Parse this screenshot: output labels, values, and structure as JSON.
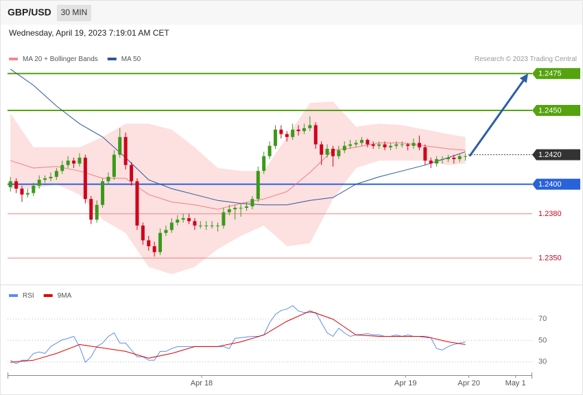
{
  "header": {
    "symbol": "GBP/USD",
    "timeframe": "30 MIN",
    "timestamp": "Wednesday, April 19, 2023 7:19:01 AM CET"
  },
  "chart_data": [
    {
      "type": "candlestick",
      "credit": "Research © 2023 Trading Central",
      "xlim": [
        -0.5,
        90.6
      ],
      "ylim": [
        1.2332,
        1.2483
      ],
      "up_color": "#3a9a1a",
      "down_color": "#d0021b",
      "candles": {
        "open": [
          1.2398,
          1.2402,
          1.2397,
          1.2393,
          1.2394,
          1.2399,
          1.2403,
          1.2404,
          1.2405,
          1.2409,
          1.2413,
          1.2416,
          1.2414,
          1.2418,
          1.239,
          1.2376,
          1.2386,
          1.2402,
          1.2405,
          1.242,
          1.2432,
          1.2413,
          1.2402,
          1.2372,
          1.2362,
          1.2358,
          1.2354,
          1.2367,
          1.2369,
          1.2374,
          1.2376,
          1.2377,
          1.2375,
          1.2372,
          1.2372,
          1.2372,
          1.2372,
          1.2372,
          1.2381,
          1.2383,
          1.2384,
          1.2384,
          1.2385,
          1.239,
          1.2409,
          1.2419,
          1.2426,
          1.2437,
          1.2434,
          1.2432,
          1.2437,
          1.2436,
          1.2438,
          1.244,
          1.2427,
          1.242,
          1.2424,
          1.2419,
          1.2423,
          1.2426,
          1.2427,
          1.2428,
          1.243,
          1.2427,
          1.2426,
          1.2427,
          1.2425,
          1.2426,
          1.2427,
          1.2427,
          1.2426,
          1.2428,
          1.2425,
          1.2416,
          1.2414,
          1.2417,
          1.2417,
          1.2418,
          1.2417,
          1.2419
        ],
        "high": [
          1.2405,
          1.2404,
          1.2399,
          1.2397,
          1.2401,
          1.2406,
          1.2406,
          1.2408,
          1.2411,
          1.2416,
          1.2419,
          1.2418,
          1.2421,
          1.242,
          1.2392,
          1.2389,
          1.2404,
          1.2408,
          1.2423,
          1.2438,
          1.2435,
          1.2415,
          1.2404,
          1.2374,
          1.2365,
          1.2361,
          1.237,
          1.2372,
          1.2377,
          1.2379,
          1.238,
          1.238,
          1.2377,
          1.2375,
          1.2375,
          1.2375,
          1.2374,
          1.2384,
          1.2386,
          1.2386,
          1.2387,
          1.2388,
          1.2392,
          1.2412,
          1.2422,
          1.2429,
          1.244,
          1.244,
          1.2436,
          1.2441,
          1.244,
          1.2441,
          1.2446,
          1.2442,
          1.2429,
          1.2427,
          1.2426,
          1.2426,
          1.2429,
          1.243,
          1.243,
          1.2432,
          1.2431,
          1.2429,
          1.2429,
          1.2429,
          1.2428,
          1.2429,
          1.2429,
          1.2428,
          1.2431,
          1.2433,
          1.2427,
          1.2418,
          1.2419,
          1.2419,
          1.242,
          1.242,
          1.2421,
          1.2421
        ],
        "low": [
          1.2395,
          1.2394,
          1.2388,
          1.2391,
          1.2392,
          1.2397,
          1.2401,
          1.2402,
          1.2403,
          1.2407,
          1.2411,
          1.2411,
          1.2412,
          1.2387,
          1.2373,
          1.2374,
          1.2384,
          1.24,
          1.2403,
          1.2418,
          1.241,
          1.2399,
          1.2369,
          1.2359,
          1.2355,
          1.2351,
          1.2352,
          1.2365,
          1.2367,
          1.2372,
          1.2374,
          1.2373,
          1.2369,
          1.237,
          1.2369,
          1.237,
          1.2368,
          1.237,
          1.2379,
          1.2376,
          1.2378,
          1.2382,
          1.2383,
          1.2388,
          1.2407,
          1.2417,
          1.2424,
          1.2431,
          1.2429,
          1.243,
          1.2433,
          1.2434,
          1.2436,
          1.2424,
          1.2413,
          1.2418,
          1.2412,
          1.2417,
          1.2421,
          1.2424,
          1.2425,
          1.2426,
          1.2425,
          1.2424,
          1.2424,
          1.2423,
          1.2423,
          1.2424,
          1.2425,
          1.2423,
          1.2424,
          1.2423,
          1.2413,
          1.2411,
          1.2412,
          1.2414,
          1.2415,
          1.2414,
          1.2415,
          1.2416
        ],
        "close": [
          1.2402,
          1.2397,
          1.2393,
          1.2394,
          1.2399,
          1.2403,
          1.2404,
          1.2405,
          1.2409,
          1.2413,
          1.2416,
          1.2414,
          1.2418,
          1.239,
          1.2376,
          1.2386,
          1.2402,
          1.2405,
          1.242,
          1.2432,
          1.2413,
          1.2402,
          1.2372,
          1.2362,
          1.2358,
          1.2354,
          1.2367,
          1.2369,
          1.2374,
          1.2376,
          1.2377,
          1.2375,
          1.2372,
          1.2372,
          1.2372,
          1.2372,
          1.2372,
          1.2381,
          1.2383,
          1.2384,
          1.2384,
          1.2385,
          1.239,
          1.2409,
          1.2419,
          1.2426,
          1.2437,
          1.2434,
          1.2432,
          1.2437,
          1.2436,
          1.2438,
          1.244,
          1.2427,
          1.242,
          1.2424,
          1.2419,
          1.2423,
          1.2426,
          1.2427,
          1.2428,
          1.243,
          1.2427,
          1.2426,
          1.2427,
          1.2425,
          1.2426,
          1.2427,
          1.2427,
          1.2426,
          1.2428,
          1.2425,
          1.2416,
          1.2414,
          1.2417,
          1.2417,
          1.2418,
          1.2417,
          1.2419,
          1.2419
        ]
      },
      "series": [
        {
          "name": "MA 20 + Bollinger Bands",
          "color": "#f08080",
          "band_color": "#fde0e0",
          "x": [
            0,
            4,
            8,
            12,
            16,
            20,
            24,
            28,
            32,
            36,
            40,
            44,
            48,
            52,
            56,
            60,
            64,
            68,
            72,
            76,
            79
          ],
          "values": [
            1.2416,
            1.2411,
            1.2412,
            1.2409,
            1.2404,
            1.2404,
            1.2393,
            1.2388,
            1.2386,
            1.2383,
            1.2387,
            1.239,
            1.2395,
            1.2408,
            1.2423,
            1.2425,
            1.2428,
            1.2428,
            1.2426,
            1.2424,
            1.2423
          ],
          "upper": [
            1.2448,
            1.2425,
            1.2425,
            1.2425,
            1.2432,
            1.2441,
            1.2441,
            1.2437,
            1.2425,
            1.2411,
            1.2409,
            1.2409,
            1.2432,
            1.2455,
            1.2456,
            1.2439,
            1.2441,
            1.244,
            1.2437,
            1.2434,
            1.2432
          ],
          "lower": [
            1.2397,
            1.2397,
            1.24,
            1.2393,
            1.2376,
            1.2367,
            1.2344,
            1.2339,
            1.2344,
            1.2356,
            1.2365,
            1.2372,
            1.2358,
            1.236,
            1.239,
            1.2411,
            1.2416,
            1.2416,
            1.2416,
            1.2413,
            1.2414
          ]
        },
        {
          "name": "MA 50",
          "color": "#2b5797",
          "x": [
            0,
            4,
            8,
            12,
            16,
            20,
            24,
            28,
            32,
            36,
            40,
            44,
            48,
            52,
            56,
            60,
            64,
            68,
            72,
            76,
            79
          ],
          "values": [
            1.2478,
            1.2467,
            1.2453,
            1.2441,
            1.2432,
            1.2418,
            1.2403,
            1.2397,
            1.2393,
            1.2389,
            1.2387,
            1.2386,
            1.2386,
            1.2389,
            1.2391,
            1.24,
            1.2405,
            1.2409,
            1.2413,
            1.2418,
            1.2422
          ]
        }
      ],
      "levels": [
        {
          "value": 1.2475,
          "label": "1.2475",
          "color": "#55a30e",
          "style": "box",
          "line": "solid"
        },
        {
          "value": 1.245,
          "label": "1.2450",
          "color": "#55a30e",
          "style": "box",
          "line": "solid"
        },
        {
          "value": 1.242,
          "label": "1.2420",
          "color": "#333333",
          "style": "box",
          "line": "dotted"
        },
        {
          "value": 1.24,
          "label": "1.2400",
          "color": "#2962d9",
          "style": "box",
          "line": "solid"
        },
        {
          "value": 1.238,
          "label": "1.2380",
          "color": "#f08080",
          "style": "text",
          "line": "solid"
        },
        {
          "value": 1.235,
          "label": "1.2350",
          "color": "#f08080",
          "style": "text",
          "line": "solid"
        }
      ],
      "arrow_color": "#2b5ea7"
    },
    {
      "type": "line",
      "xlim": [
        -0.5,
        90.6
      ],
      "ylim": [
        19,
        86
      ],
      "yticks": [
        30,
        50,
        70
      ],
      "grid": true,
      "xticks": [
        {
          "value": 33.2,
          "label": "Apr 18"
        },
        {
          "value": 68.6,
          "label": "Apr 19"
        },
        {
          "value": 79.6,
          "label": "Apr 20"
        },
        {
          "value": 87.7,
          "label": "May 1"
        }
      ],
      "series": [
        {
          "name": "RSI",
          "color": "#5b8def",
          "values": [
            31.6,
            28.4,
            31.6,
            31.6,
            37.9,
            39.2,
            37.9,
            44.3,
            47.5,
            50.6,
            51.9,
            53.8,
            44.3,
            29.7,
            34.8,
            44.3,
            47.5,
            53.8,
            57.0,
            47.5,
            47.5,
            41.1,
            34.8,
            34.8,
            31.6,
            31.6,
            39.8,
            39.8,
            42.4,
            44.3,
            44.3,
            44.3,
            44.3,
            44.3,
            44.3,
            44.3,
            44.3,
            44.3,
            42.4,
            51.9,
            52.5,
            53.2,
            53.8,
            53.8,
            55.1,
            66.5,
            74.1,
            77.9,
            79.2,
            82.4,
            77.3,
            76.0,
            76.0,
            76.0,
            66.5,
            57.0,
            53.8,
            61.4,
            57.0,
            53.8,
            55.1,
            55.7,
            56.3,
            55.1,
            55.1,
            53.8,
            53.8,
            55.1,
            53.8,
            55.1,
            53.8,
            53.8,
            52.5,
            52.5,
            42.4,
            41.1,
            44.3,
            46.2,
            47.5,
            48.7
          ]
        },
        {
          "name": "9MA",
          "color": "#e00000",
          "x": [
            0,
            4,
            8,
            12,
            16,
            20,
            24,
            28,
            32,
            36,
            40,
            44,
            48,
            52,
            56,
            60,
            64,
            68,
            72,
            76,
            79
          ],
          "values": [
            29.7,
            31.6,
            37.9,
            46.2,
            43.0,
            39.8,
            33.5,
            37.9,
            44.3,
            44.3,
            48.7,
            55.1,
            67.8,
            77.3,
            69.7,
            55.1,
            53.8,
            53.8,
            53.8,
            48.7,
            46.2
          ]
        }
      ]
    }
  ]
}
